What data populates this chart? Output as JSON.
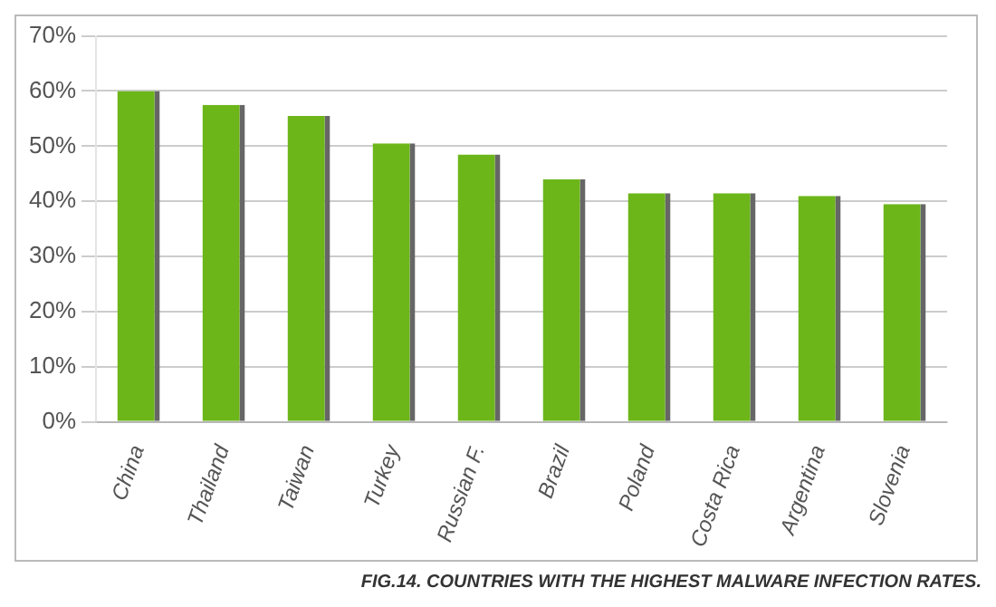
{
  "chart_data": {
    "type": "bar",
    "categories": [
      "China",
      "Thailand",
      "Taiwan",
      "Turkey",
      "Russian F.",
      "Brazil",
      "Poland",
      "Costa Rica",
      "Argentina",
      "Slovenia"
    ],
    "values": [
      60,
      57.5,
      55.5,
      50.5,
      48.5,
      44,
      41.5,
      41.5,
      41,
      39.5
    ],
    "color": "#6cb61a",
    "ylim": [
      0,
      70
    ],
    "yticks": [
      {
        "value": 0,
        "label": "0%"
      },
      {
        "value": 10,
        "label": "10%"
      },
      {
        "value": 20,
        "label": "20%"
      },
      {
        "value": 30,
        "label": "30%"
      },
      {
        "value": 40,
        "label": "40%"
      },
      {
        "value": 50,
        "label": "50%"
      },
      {
        "value": 60,
        "label": "60%"
      },
      {
        "value": 70,
        "label": "70%"
      }
    ],
    "grid": "y",
    "annotations": [
      "FIG.14. COUNTRIES WITH THE HIGHEST MALWARE INFECTION RATES."
    ]
  }
}
